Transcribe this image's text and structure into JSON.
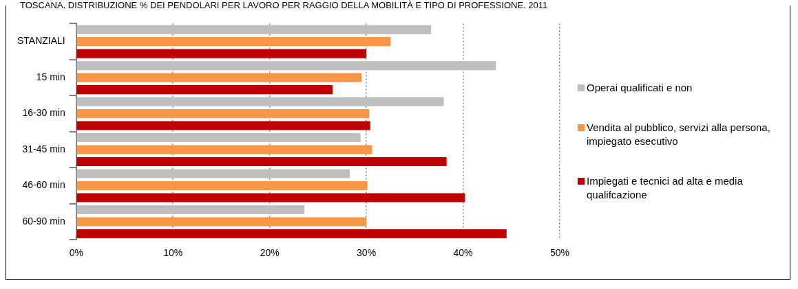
{
  "chart_data": {
    "type": "bar",
    "orientation": "horizontal",
    "title": "TOSCANA. DISTRIBUZIONE % DEI PENDOLARI PER LAVORO PER RAGGIO DELLA MOBILITÀ E TIPO DI PROFESSIONE. 2011",
    "categories": [
      "STANZIALI",
      "15 min",
      "16-30 min",
      "31-45 min",
      "46-60 min",
      "60-90 min"
    ],
    "series": [
      {
        "name": "Operai qualificati e non",
        "color": "#bfbfbf",
        "values": [
          36.7,
          43.4,
          38.0,
          29.4,
          28.3,
          23.6
        ]
      },
      {
        "name": "Vendita al pubblico, servizi alla persona, impiegato esecutivo",
        "color": "#f79646",
        "values": [
          32.5,
          29.5,
          30.3,
          30.6,
          30.1,
          30.0
        ]
      },
      {
        "name": "Impiegati e tecnici ad alta e media qualifcazione",
        "color": "#c00000",
        "values": [
          30.0,
          26.5,
          30.4,
          38.3,
          40.2,
          44.5
        ]
      }
    ],
    "xlim": [
      0,
      50
    ],
    "xticks": [
      {
        "value": 0,
        "label": "0%"
      },
      {
        "value": 10,
        "label": "10%"
      },
      {
        "value": 20,
        "label": "20%"
      },
      {
        "value": 30,
        "label": "30%"
      },
      {
        "value": 40,
        "label": "40%"
      },
      {
        "value": 50,
        "label": "50%"
      }
    ],
    "grid": "x",
    "legend": "right"
  }
}
